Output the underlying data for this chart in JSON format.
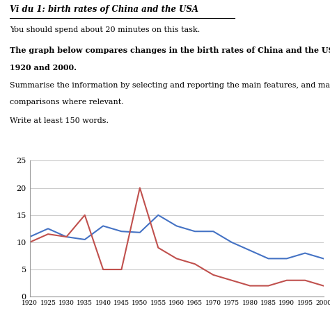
{
  "title_italic_underline": "Vi du 1: birth rates of China and the USA",
  "subtitle1": "You should spend about 20 minutes on this task.",
  "subtitle2_part1": "The graph below compares changes in the birth rates of China and the USA between",
  "subtitle2_part2": "1920 and 2000.",
  "subtitle3_part1": "Summarise the information by selecting and reporting the main features, and make",
  "subtitle3_part2": "comparisons where relevant.",
  "subtitle4": "Write at least 150 words.",
  "years": [
    1920,
    1925,
    1930,
    1935,
    1940,
    1945,
    1950,
    1955,
    1960,
    1965,
    1970,
    1975,
    1980,
    1985,
    1990,
    1995,
    2000
  ],
  "usa": [
    11,
    12.5,
    11,
    10.5,
    13,
    12,
    11.8,
    15,
    13,
    12,
    12,
    10,
    8.5,
    7,
    7,
    8,
    7
  ],
  "china": [
    10,
    11.5,
    11,
    15,
    5,
    5,
    20,
    9,
    7,
    6,
    4,
    3,
    2,
    2,
    3,
    3,
    2
  ],
  "usa_color": "#4472C4",
  "china_color": "#C0504D",
  "ylim": [
    0,
    25
  ],
  "yticks": [
    0,
    5,
    10,
    15,
    20,
    25
  ],
  "xlim": [
    1920,
    2000
  ],
  "xticks": [
    1920,
    1925,
    1930,
    1935,
    1940,
    1945,
    1950,
    1955,
    1960,
    1965,
    1970,
    1975,
    1980,
    1985,
    1990,
    1995,
    2000
  ],
  "grid_color": "#cccccc",
  "background_color": "#ffffff",
  "fig_width": 4.74,
  "fig_height": 4.45,
  "dpi": 100
}
